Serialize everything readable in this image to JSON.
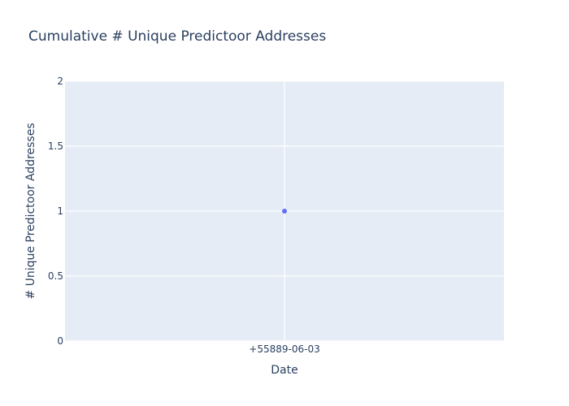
{
  "chart_data": {
    "type": "scatter",
    "title": "Cumulative # Unique Predictoor Addresses",
    "xlabel": "Date",
    "ylabel": "# Unique Predictoor Addresses",
    "x_tick_labels": [
      "+55889-06-03"
    ],
    "y_ticks": [
      0,
      0.5,
      1,
      1.5,
      2
    ],
    "y_tick_labels": [
      "0",
      "0.5",
      "1",
      "1.5",
      "2"
    ],
    "ylim": [
      0,
      2
    ],
    "grid": true,
    "series": [
      {
        "x": [
          "+55889-06-03"
        ],
        "y": [
          1
        ],
        "color": "#636efa"
      }
    ],
    "colors": {
      "plot_background": "#e5ecf6",
      "grid": "#ffffff",
      "text": "#2a3f5f"
    }
  }
}
